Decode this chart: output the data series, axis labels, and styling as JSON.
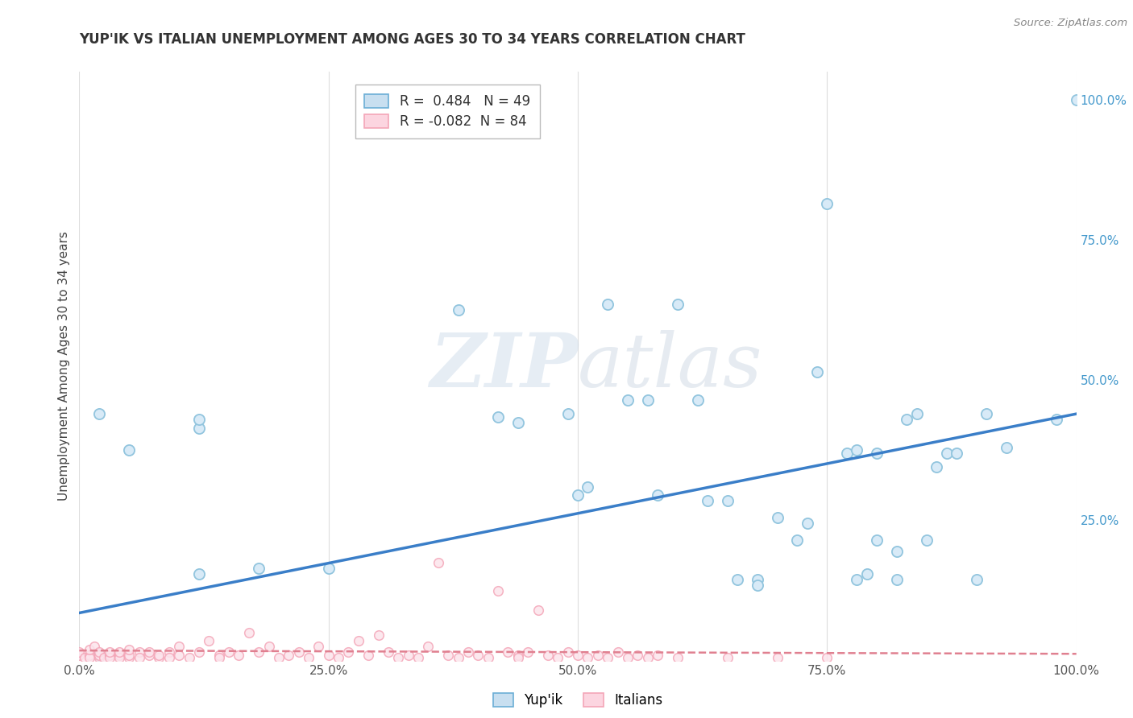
{
  "title": "YUP'IK VS ITALIAN UNEMPLOYMENT AMONG AGES 30 TO 34 YEARS CORRELATION CHART",
  "source": "Source: ZipAtlas.com",
  "ylabel": "Unemployment Among Ages 30 to 34 years",
  "xlim": [
    0.0,
    1.0
  ],
  "ylim": [
    0.0,
    1.05
  ],
  "xtick_labels": [
    "0.0%",
    "25.0%",
    "50.0%",
    "75.0%",
    "100.0%"
  ],
  "xtick_vals": [
    0.0,
    0.25,
    0.5,
    0.75,
    1.0
  ],
  "right_ytick_labels": [
    "25.0%",
    "50.0%",
    "75.0%",
    "100.0%"
  ],
  "right_ytick_vals": [
    0.25,
    0.5,
    0.75,
    1.0
  ],
  "legend_R_blue": " 0.484",
  "legend_N_blue": "49",
  "legend_R_pink": "-0.082",
  "legend_N_pink": "84",
  "blue_color": "#92c5de",
  "pink_color": "#f4a6b8",
  "trendline_blue_color": "#3a7ec8",
  "trendline_pink_color": "#e08090",
  "watermark_zip": "ZIP",
  "watermark_atlas": "atlas",
  "background_color": "#ffffff",
  "grid_color": "#dddddd",
  "blue_scatter": [
    [
      0.02,
      0.44
    ],
    [
      0.02,
      0.01
    ],
    [
      0.05,
      0.375
    ],
    [
      0.12,
      0.415
    ],
    [
      0.12,
      0.43
    ],
    [
      0.12,
      0.155
    ],
    [
      0.18,
      0.165
    ],
    [
      0.25,
      0.165
    ],
    [
      0.38,
      0.625
    ],
    [
      0.42,
      0.435
    ],
    [
      0.44,
      0.425
    ],
    [
      0.49,
      0.44
    ],
    [
      0.5,
      0.295
    ],
    [
      0.51,
      0.31
    ],
    [
      0.53,
      0.635
    ],
    [
      0.55,
      0.465
    ],
    [
      0.57,
      0.465
    ],
    [
      0.58,
      0.295
    ],
    [
      0.6,
      0.635
    ],
    [
      0.62,
      0.465
    ],
    [
      0.63,
      0.285
    ],
    [
      0.65,
      0.285
    ],
    [
      0.66,
      0.145
    ],
    [
      0.68,
      0.145
    ],
    [
      0.68,
      0.135
    ],
    [
      0.7,
      0.255
    ],
    [
      0.72,
      0.215
    ],
    [
      0.73,
      0.245
    ],
    [
      0.74,
      0.515
    ],
    [
      0.75,
      0.815
    ],
    [
      0.77,
      0.37
    ],
    [
      0.78,
      0.375
    ],
    [
      0.78,
      0.145
    ],
    [
      0.79,
      0.155
    ],
    [
      0.8,
      0.37
    ],
    [
      0.8,
      0.215
    ],
    [
      0.82,
      0.145
    ],
    [
      0.82,
      0.195
    ],
    [
      0.83,
      0.43
    ],
    [
      0.84,
      0.44
    ],
    [
      0.85,
      0.215
    ],
    [
      0.86,
      0.345
    ],
    [
      0.87,
      0.37
    ],
    [
      0.88,
      0.37
    ],
    [
      0.9,
      0.145
    ],
    [
      0.91,
      0.44
    ],
    [
      0.93,
      0.38
    ],
    [
      0.98,
      0.43
    ],
    [
      1.0,
      1.0
    ]
  ],
  "pink_scatter": [
    [
      0.0,
      0.01
    ],
    [
      0.0,
      0.015
    ],
    [
      0.005,
      0.005
    ],
    [
      0.01,
      0.01
    ],
    [
      0.01,
      0.005
    ],
    [
      0.01,
      0.02
    ],
    [
      0.015,
      0.025
    ],
    [
      0.02,
      0.005
    ],
    [
      0.02,
      0.01
    ],
    [
      0.02,
      0.015
    ],
    [
      0.025,
      0.005
    ],
    [
      0.03,
      0.01
    ],
    [
      0.03,
      0.005
    ],
    [
      0.03,
      0.015
    ],
    [
      0.04,
      0.01
    ],
    [
      0.04,
      0.005
    ],
    [
      0.04,
      0.015
    ],
    [
      0.05,
      0.005
    ],
    [
      0.05,
      0.01
    ],
    [
      0.05,
      0.02
    ],
    [
      0.06,
      0.015
    ],
    [
      0.06,
      0.005
    ],
    [
      0.07,
      0.01
    ],
    [
      0.07,
      0.015
    ],
    [
      0.08,
      0.005
    ],
    [
      0.08,
      0.01
    ],
    [
      0.09,
      0.015
    ],
    [
      0.09,
      0.005
    ],
    [
      0.1,
      0.025
    ],
    [
      0.1,
      0.01
    ],
    [
      0.11,
      0.005
    ],
    [
      0.12,
      0.015
    ],
    [
      0.13,
      0.035
    ],
    [
      0.14,
      0.01
    ],
    [
      0.14,
      0.005
    ],
    [
      0.15,
      0.015
    ],
    [
      0.16,
      0.01
    ],
    [
      0.17,
      0.05
    ],
    [
      0.18,
      0.015
    ],
    [
      0.19,
      0.025
    ],
    [
      0.2,
      0.005
    ],
    [
      0.21,
      0.01
    ],
    [
      0.22,
      0.015
    ],
    [
      0.23,
      0.005
    ],
    [
      0.24,
      0.025
    ],
    [
      0.25,
      0.01
    ],
    [
      0.26,
      0.005
    ],
    [
      0.27,
      0.015
    ],
    [
      0.28,
      0.035
    ],
    [
      0.29,
      0.01
    ],
    [
      0.3,
      0.045
    ],
    [
      0.31,
      0.015
    ],
    [
      0.32,
      0.005
    ],
    [
      0.33,
      0.01
    ],
    [
      0.34,
      0.005
    ],
    [
      0.35,
      0.025
    ],
    [
      0.36,
      0.175
    ],
    [
      0.37,
      0.01
    ],
    [
      0.38,
      0.005
    ],
    [
      0.39,
      0.015
    ],
    [
      0.4,
      0.01
    ],
    [
      0.41,
      0.005
    ],
    [
      0.42,
      0.125
    ],
    [
      0.43,
      0.015
    ],
    [
      0.44,
      0.01
    ],
    [
      0.44,
      0.005
    ],
    [
      0.45,
      0.015
    ],
    [
      0.46,
      0.09
    ],
    [
      0.47,
      0.01
    ],
    [
      0.48,
      0.005
    ],
    [
      0.49,
      0.015
    ],
    [
      0.5,
      0.01
    ],
    [
      0.51,
      0.005
    ],
    [
      0.52,
      0.01
    ],
    [
      0.53,
      0.005
    ],
    [
      0.54,
      0.015
    ],
    [
      0.55,
      0.005
    ],
    [
      0.56,
      0.01
    ],
    [
      0.57,
      0.005
    ],
    [
      0.58,
      0.01
    ],
    [
      0.6,
      0.005
    ],
    [
      0.65,
      0.005
    ],
    [
      0.7,
      0.005
    ],
    [
      0.75,
      0.005
    ]
  ],
  "blue_trend": [
    0.0,
    0.085,
    1.0,
    0.44
  ],
  "pink_trend": [
    0.0,
    0.018,
    1.0,
    0.012
  ]
}
